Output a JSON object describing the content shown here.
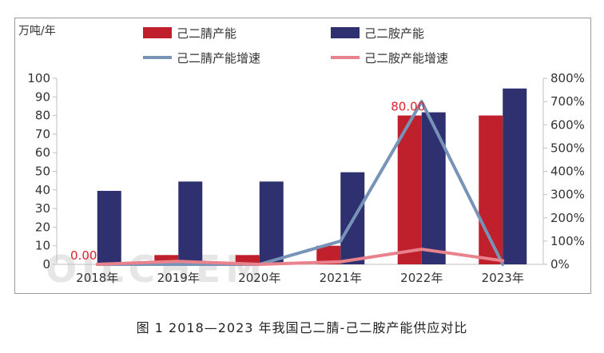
{
  "caption": "图 1 2018—2023 年我国己二腈-己二胺产能供应对比",
  "watermark": "OILCHEM",
  "chart_data": {
    "type": "bar",
    "unit_label": "万吨/年",
    "categories": [
      "2018年",
      "2019年",
      "2020年",
      "2021年",
      "2022年",
      "2023年"
    ],
    "series": [
      {
        "name": "己二腈产能",
        "kind": "bar",
        "axis": "left",
        "color": "#c0202b",
        "values": [
          0,
          5,
          5,
          10,
          80,
          80
        ]
      },
      {
        "name": "己二胺产能",
        "kind": "bar",
        "axis": "left",
        "color": "#2e3070",
        "values": [
          39.5,
          44.5,
          44.5,
          49.5,
          81.7,
          94.5
        ]
      },
      {
        "name": "己二腈产能增速",
        "kind": "line",
        "axis": "right",
        "color": "#7793b8",
        "values": [
          0,
          0,
          0,
          100,
          700,
          0
        ]
      },
      {
        "name": "己二胺产能增速",
        "kind": "line",
        "axis": "right",
        "color": "#e8828c",
        "values": [
          0,
          12.7,
          0,
          11.2,
          65,
          15.7
        ]
      }
    ],
    "ylim_left": [
      0,
      100
    ],
    "yticks_left": [
      "0",
      "10",
      "20",
      "30",
      "40",
      "50",
      "60",
      "70",
      "80",
      "90",
      "100"
    ],
    "ylim_right": [
      0,
      800
    ],
    "yticks_right": [
      "0%",
      "100%",
      "200%",
      "300%",
      "400%",
      "500%",
      "600%",
      "700%",
      "800%"
    ],
    "annotations": [
      {
        "text": "0.00",
        "category": "2018年",
        "value": 0,
        "color": "#e0202b"
      },
      {
        "text": "80.00",
        "category": "2022年",
        "value": 80,
        "color": "#e0202b"
      }
    ],
    "legend": "top",
    "grid": false
  }
}
